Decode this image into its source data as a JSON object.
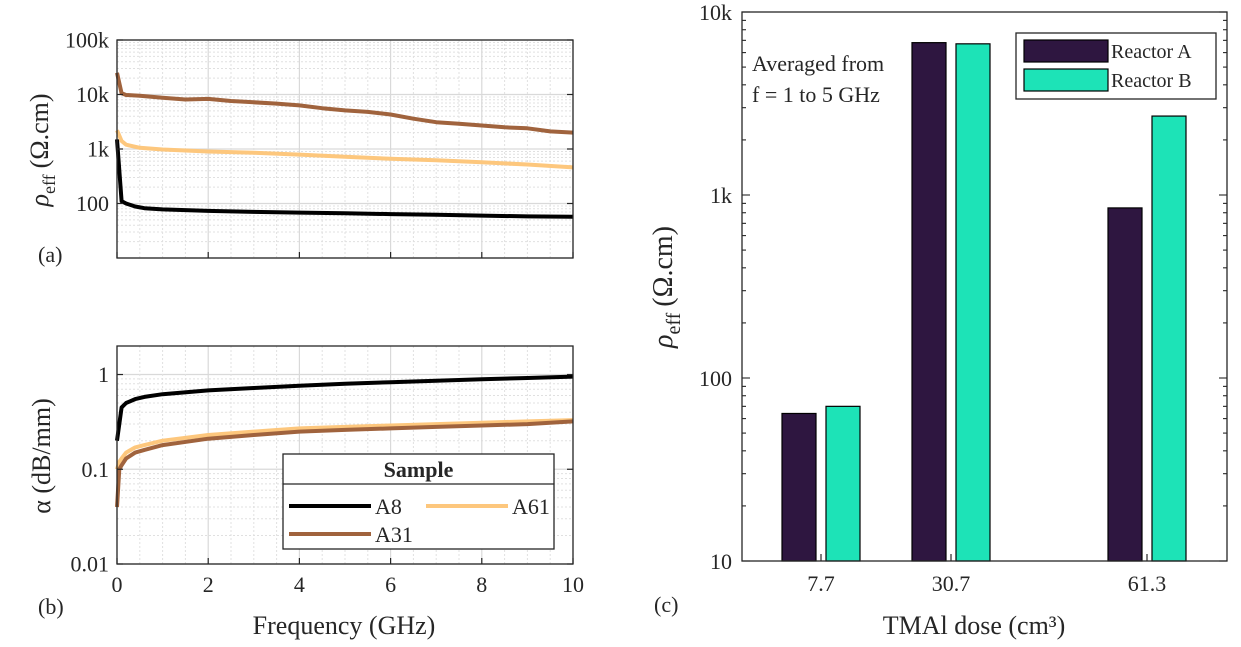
{
  "chart_data": [
    {
      "panel": "(a)",
      "type": "line",
      "xlabel": "",
      "ylabel_main": "ρ",
      "ylabel_sub": "eff",
      "ylabel_unit": "(Ω.cm)",
      "yscale": "log",
      "xlim": [
        0,
        10
      ],
      "ylim": [
        10,
        100000
      ],
      "yticks": [
        100,
        1000,
        10000,
        100000
      ],
      "ytick_labels": [
        "100",
        "1k",
        "10k",
        "100k"
      ],
      "grid": true,
      "series": [
        {
          "name": "A8",
          "color": "#000000",
          "x": [
            0,
            0.1,
            0.2,
            0.4,
            0.6,
            1,
            2,
            3,
            4,
            5,
            6,
            7,
            8,
            9,
            10
          ],
          "y": [
            1500,
            110,
            100,
            88,
            82,
            78,
            73,
            70,
            68,
            66,
            64,
            62,
            60,
            58,
            57
          ]
        },
        {
          "name": "A61",
          "color": "#fdc77d",
          "x": [
            0,
            0.1,
            0.2,
            0.5,
            1,
            2,
            3,
            4,
            5,
            6,
            7,
            8,
            9,
            10
          ],
          "y": [
            2200,
            1400,
            1200,
            1050,
            980,
            900,
            850,
            790,
            720,
            660,
            620,
            570,
            520,
            460
          ]
        },
        {
          "name": "A31",
          "color": "#a0633d",
          "x": [
            0,
            0.1,
            0.2,
            0.5,
            1,
            1.5,
            2,
            2.5,
            3,
            3.5,
            4,
            4.5,
            5,
            5.5,
            6,
            6.5,
            7,
            7.5,
            8,
            8.5,
            9,
            9.5,
            10
          ],
          "y": [
            25000,
            10500,
            9800,
            9500,
            8700,
            8100,
            8300,
            7600,
            7200,
            6800,
            6300,
            5600,
            5100,
            4800,
            4300,
            3600,
            3100,
            2900,
            2700,
            2500,
            2400,
            2100,
            2000
          ]
        }
      ]
    },
    {
      "panel": "(b)",
      "type": "line",
      "xlabel": "Frequency (GHz)",
      "ylabel": "α (dB/mm)",
      "yscale": "log",
      "xlim": [
        0,
        10
      ],
      "ylim": [
        0.01,
        2
      ],
      "xticks": [
        0,
        2,
        4,
        6,
        8,
        10
      ],
      "yticks": [
        0.01,
        0.1,
        1
      ],
      "ytick_labels": [
        "0.01",
        "0.1",
        "1"
      ],
      "grid": true,
      "legend": {
        "title": "Sample",
        "placement": "bottom-right",
        "entries": [
          "A8",
          "A61",
          "A31"
        ]
      },
      "series": [
        {
          "name": "A8",
          "color": "#000000",
          "x": [
            0,
            0.1,
            0.2,
            0.4,
            0.6,
            1,
            2,
            3,
            4,
            5,
            6,
            7,
            8,
            9,
            10
          ],
          "y": [
            0.2,
            0.45,
            0.5,
            0.55,
            0.58,
            0.62,
            0.68,
            0.72,
            0.76,
            0.8,
            0.83,
            0.86,
            0.89,
            0.92,
            0.95
          ]
        },
        {
          "name": "A61",
          "color": "#fdc77d",
          "x": [
            0,
            0.05,
            0.1,
            0.2,
            0.4,
            0.6,
            1,
            2,
            3,
            4,
            5,
            6,
            7,
            8,
            9,
            10
          ],
          "y": [
            0.1,
            0.12,
            0.13,
            0.15,
            0.17,
            0.18,
            0.2,
            0.23,
            0.25,
            0.27,
            0.28,
            0.29,
            0.3,
            0.31,
            0.32,
            0.33
          ]
        },
        {
          "name": "A31",
          "color": "#a0633d",
          "x": [
            0,
            0.05,
            0.1,
            0.2,
            0.4,
            0.6,
            1,
            2,
            3,
            4,
            5,
            6,
            7,
            8,
            9,
            10
          ],
          "y": [
            0.04,
            0.1,
            0.11,
            0.13,
            0.15,
            0.16,
            0.18,
            0.21,
            0.23,
            0.25,
            0.26,
            0.27,
            0.28,
            0.29,
            0.3,
            0.32
          ]
        }
      ]
    },
    {
      "panel": "(c)",
      "type": "bar",
      "xlabel": "TMAl dose (cm³)",
      "ylabel_main": "ρ",
      "ylabel_sub": "eff",
      "ylabel_unit": "(Ω.cm)",
      "yscale": "log",
      "ylim": [
        10,
        10000
      ],
      "yticks": [
        10,
        100,
        1000,
        10000
      ],
      "ytick_labels": [
        "10",
        "100",
        "1k",
        "10k"
      ],
      "categories": [
        "7.7",
        "30.7",
        "61.3"
      ],
      "x": [
        7.7,
        30.7,
        61.3
      ],
      "annotation": [
        "Averaged from",
        "f = 1 to 5 GHz"
      ],
      "legend": {
        "placement": "top-right",
        "entries": [
          "Reactor A",
          "Reactor B"
        ]
      },
      "series": [
        {
          "name": "Reactor A",
          "color": "#2e1640",
          "values": [
            64,
            6800,
            850
          ]
        },
        {
          "name": "Reactor B",
          "color": "#1de3b7",
          "values": [
            70,
            6700,
            2700
          ]
        }
      ]
    }
  ]
}
